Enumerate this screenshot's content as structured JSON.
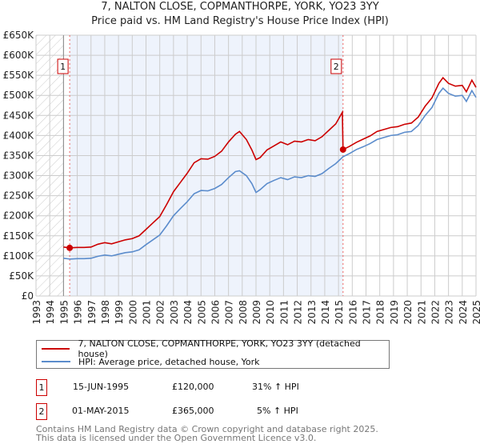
{
  "chart_data": {
    "type": "line",
    "title": "7, NALTON CLOSE, COPMANTHORPE, YORK, YO23 3YY",
    "subtitle": "Price paid vs. HM Land Registry's House Price Index (HPI)",
    "xlim": [
      1993,
      2025
    ],
    "ylim": [
      0,
      650000
    ],
    "x_ticks": [
      "1993",
      "1994",
      "1995",
      "1996",
      "1997",
      "1998",
      "1999",
      "2000",
      "2001",
      "2002",
      "2003",
      "2004",
      "2005",
      "2006",
      "2007",
      "2008",
      "2009",
      "2010",
      "2011",
      "2012",
      "2013",
      "2014",
      "2015",
      "2016",
      "2017",
      "2018",
      "2019",
      "2020",
      "2021",
      "2022",
      "2023",
      "2024",
      "2025"
    ],
    "y_ticks": [
      {
        "v": 0,
        "label": "£0"
      },
      {
        "v": 50000,
        "label": "£50K"
      },
      {
        "v": 100000,
        "label": "£100K"
      },
      {
        "v": 150000,
        "label": "£150K"
      },
      {
        "v": 200000,
        "label": "£200K"
      },
      {
        "v": 250000,
        "label": "£250K"
      },
      {
        "v": 300000,
        "label": "£300K"
      },
      {
        "v": 350000,
        "label": "£350K"
      },
      {
        "v": 400000,
        "label": "£400K"
      },
      {
        "v": 450000,
        "label": "£450K"
      },
      {
        "v": 500000,
        "label": "£500K"
      },
      {
        "v": 550000,
        "label": "£550K"
      },
      {
        "v": 600000,
        "label": "£600K"
      },
      {
        "v": 650000,
        "label": "£650K"
      }
    ],
    "grid": true,
    "hatched_range": [
      1993,
      1995
    ],
    "shaded_range": [
      1995.45,
      2015.33
    ],
    "series": [
      {
        "name": "7, NALTON CLOSE, COPMANTHORPE, YORK, YO23 3YY (detached house)",
        "color": "#cc0000",
        "x": [
          1995.0,
          1995.45,
          1996,
          1996.5,
          1997,
          1997.5,
          1998,
          1998.5,
          1999,
          1999.5,
          2000,
          2000.5,
          2001,
          2001.5,
          2002,
          2002.5,
          2003,
          2003.5,
          2004,
          2004.5,
          2005,
          2005.5,
          2006,
          2006.5,
          2007,
          2007.5,
          2007.8,
          2008.3,
          2008.7,
          2009.0,
          2009.3,
          2009.8,
          2010.3,
          2010.8,
          2011.3,
          2011.8,
          2012.3,
          2012.8,
          2013.3,
          2013.8,
          2014.3,
          2014.8,
          2015.28,
          2015.33,
          2015.8,
          2016.3,
          2016.8,
          2017.3,
          2017.8,
          2018.3,
          2018.8,
          2019.3,
          2019.8,
          2020.3,
          2020.8,
          2021.3,
          2021.8,
          2022.3,
          2022.6,
          2023.0,
          2023.5,
          2024.0,
          2024.3,
          2024.7,
          2025.0
        ],
        "y": [
          122,
          120,
          121,
          121,
          122,
          129,
          133,
          130,
          135,
          140,
          143,
          150,
          166,
          182,
          198,
          228,
          260,
          283,
          306,
          332,
          342,
          341,
          348,
          361,
          384,
          403,
          410,
          390,
          364,
          340,
          345,
          364,
          374,
          384,
          377,
          386,
          384,
          390,
          387,
          397,
          413,
          429,
          458,
          365,
          373,
          383,
          391,
          399,
          410,
          415,
          420,
          422,
          428,
          431,
          446,
          473,
          494,
          530,
          544,
          530,
          523,
          525,
          509,
          538,
          520
        ]
      },
      {
        "name": "HPI: Average price, detached house, York",
        "color": "#5b8ccc",
        "x": [
          1995.0,
          1995.5,
          1996,
          1996.5,
          1997,
          1997.5,
          1998,
          1998.5,
          1999,
          1999.5,
          2000,
          2000.5,
          2001,
          2001.5,
          2002,
          2002.5,
          2003,
          2003.5,
          2004,
          2004.5,
          2005,
          2005.5,
          2006,
          2006.5,
          2007,
          2007.5,
          2007.8,
          2008.3,
          2008.7,
          2009.0,
          2009.3,
          2009.8,
          2010.3,
          2010.8,
          2011.3,
          2011.8,
          2012.3,
          2012.8,
          2013.3,
          2013.8,
          2014.3,
          2014.8,
          2015.33,
          2015.8,
          2016.3,
          2016.8,
          2017.3,
          2017.8,
          2018.3,
          2018.8,
          2019.3,
          2019.8,
          2020.3,
          2020.8,
          2021.3,
          2021.8,
          2022.3,
          2022.6,
          2023.0,
          2023.5,
          2024.0,
          2024.3,
          2024.7,
          2025.0
        ],
        "y": [
          94,
          92,
          93,
          93,
          94,
          99,
          102,
          100,
          104,
          108,
          110,
          115,
          128,
          140,
          152,
          175,
          200,
          218,
          235,
          255,
          263,
          262,
          268,
          278,
          295,
          310,
          312,
          300,
          280,
          258,
          265,
          280,
          288,
          295,
          290,
          297,
          295,
          300,
          298,
          305,
          318,
          330,
          347,
          355,
          365,
          372,
          380,
          390,
          395,
          400,
          402,
          408,
          410,
          425,
          450,
          470,
          505,
          518,
          505,
          498,
          500,
          485,
          512,
          495
        ]
      }
    ],
    "y_units": "thousand GBP",
    "annotations": [
      {
        "label": "1",
        "x": 1995.45,
        "y": 120000
      },
      {
        "label": "2",
        "x": 2015.33,
        "y": 365000
      }
    ]
  },
  "legend": {
    "property": "7, NALTON CLOSE, COPMANTHORPE, YORK, YO23 3YY (detached house)",
    "hpi": "HPI: Average price, detached house, York"
  },
  "sales": [
    {
      "num": "1",
      "date": "15-JUN-1995",
      "price": "£120,000",
      "hpi": "31% ↑ HPI"
    },
    {
      "num": "2",
      "date": "01-MAY-2015",
      "price": "£365,000",
      "hpi": "5% ↑ HPI"
    }
  ],
  "footer": {
    "line1": "Contains HM Land Registry data © Crown copyright and database right 2025.",
    "line2": "This data is licensed under the Open Government Licence v3.0."
  }
}
